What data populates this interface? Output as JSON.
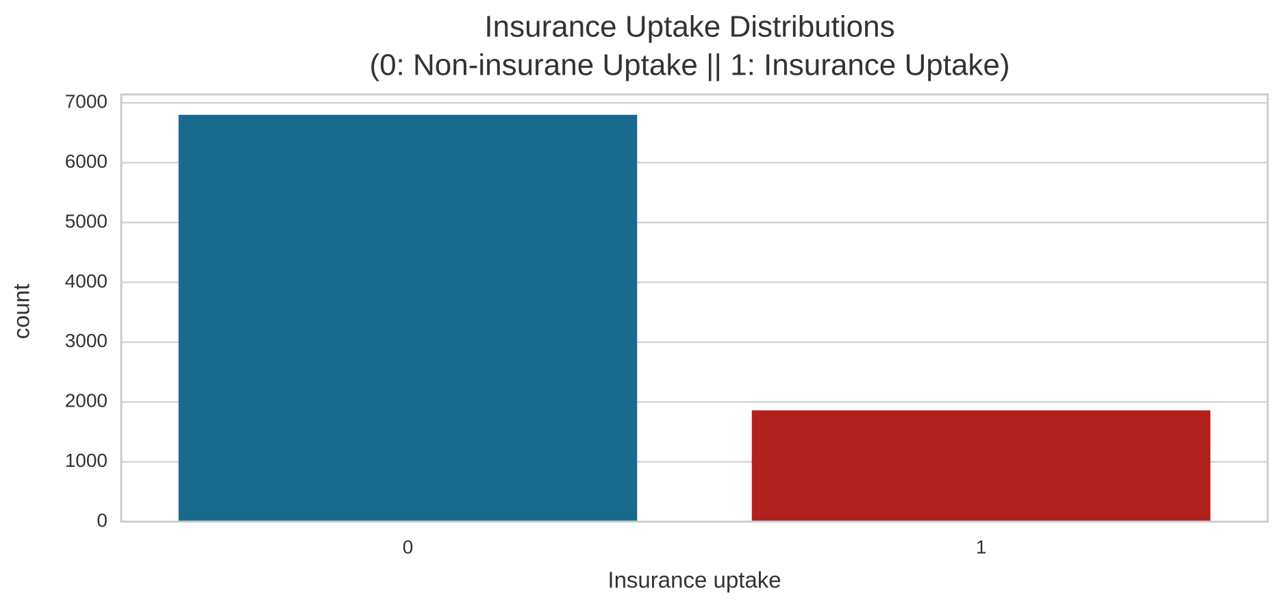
{
  "chart_data": {
    "type": "bar",
    "title": "Insurance Uptake Distributions",
    "subtitle": "(0: Non-insurane Uptake || 1: Insurance Uptake)",
    "x_label": "Insurance uptake",
    "y_label": "count",
    "categories": [
      "0",
      "1"
    ],
    "values": [
      6800,
      1860
    ],
    "colors": [
      "#1a6a8e",
      "#b0201c"
    ],
    "ylim": [
      0,
      7140
    ],
    "yticks": [
      0,
      1000,
      2000,
      3000,
      4000,
      5000,
      6000,
      7000
    ],
    "grid": true
  }
}
